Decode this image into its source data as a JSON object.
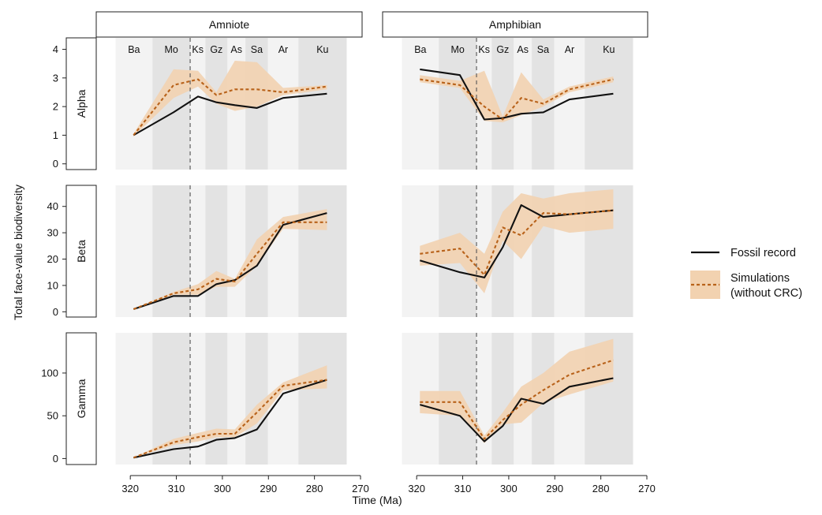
{
  "xlabel": "Time (Ma)",
  "ylabel": "Total face-value biodiversity",
  "columns": [
    "Amniote",
    "Amphibian"
  ],
  "rows": [
    "Alpha",
    "Beta",
    "Gamma"
  ],
  "colors": {
    "fossil": "#111111",
    "sim_line": "#b8621a",
    "sim_band": "#f2d2b0",
    "band_light": "#f3f3f3",
    "band_dark": "#e3e3e3"
  },
  "legend": {
    "fossil": "Fossil record",
    "sim_line1": "Simulations",
    "sim_line2": "(without CRC)"
  },
  "chart_data": {
    "type": "line",
    "xlim": [
      325,
      270
    ],
    "x_ticks": [
      320,
      310,
      300,
      290,
      280,
      270
    ],
    "vline": 307,
    "stages": [
      {
        "label": "Ba",
        "start": 323.2,
        "end": 315.2,
        "shade": "light"
      },
      {
        "label": "Mo",
        "start": 315.2,
        "end": 307.0,
        "shade": "dark"
      },
      {
        "label": "Ks",
        "start": 307.0,
        "end": 303.7,
        "shade": "light"
      },
      {
        "label": "Gz",
        "start": 303.7,
        "end": 298.9,
        "shade": "dark"
      },
      {
        "label": "As",
        "start": 298.9,
        "end": 295.0,
        "shade": "light"
      },
      {
        "label": "Sa",
        "start": 295.0,
        "end": 290.1,
        "shade": "dark"
      },
      {
        "label": "Ar",
        "start": 290.1,
        "end": 283.5,
        "shade": "light"
      },
      {
        "label": "Ku",
        "start": 283.5,
        "end": 273.0,
        "shade": "dark"
      }
    ],
    "panels": [
      {
        "row": "Alpha",
        "col": "Amniote",
        "ylim": [
          -0.2,
          4.4
        ],
        "yticks": [
          0,
          1,
          2,
          3,
          4
        ],
        "x": [
          319.3,
          310.6,
          305.3,
          301.3,
          297.3,
          292.5,
          286.8,
          277.3
        ],
        "fossil": [
          1.0,
          1.8,
          2.35,
          2.15,
          2.05,
          1.95,
          2.3,
          2.45
        ],
        "sim": [
          1.0,
          2.75,
          2.95,
          2.4,
          2.6,
          2.6,
          2.5,
          2.7
        ],
        "sim_low": [
          0.95,
          2.3,
          2.7,
          2.1,
          1.85,
          2.0,
          2.4,
          2.6
        ],
        "sim_high": [
          1.05,
          3.3,
          3.25,
          2.5,
          3.6,
          3.55,
          2.65,
          2.75
        ]
      },
      {
        "row": "Alpha",
        "col": "Amphibian",
        "ylim": [
          -0.2,
          4.4
        ],
        "yticks": [
          0,
          1,
          2,
          3,
          4
        ],
        "x": [
          319.3,
          310.6,
          305.3,
          301.3,
          297.3,
          292.5,
          286.8,
          277.3
        ],
        "fossil": [
          3.3,
          3.1,
          1.55,
          1.6,
          1.75,
          1.8,
          2.25,
          2.45
        ],
        "sim": [
          2.95,
          2.75,
          2.0,
          1.55,
          2.3,
          2.1,
          2.6,
          2.95
        ],
        "sim_low": [
          2.85,
          2.65,
          1.5,
          1.45,
          1.7,
          2.0,
          2.5,
          2.85
        ],
        "sim_high": [
          3.1,
          2.9,
          3.25,
          1.65,
          3.2,
          2.25,
          2.7,
          3.05
        ]
      },
      {
        "row": "Beta",
        "col": "Amniote",
        "ylim": [
          -2,
          48
        ],
        "yticks": [
          0,
          10,
          20,
          30,
          40
        ],
        "x": [
          319.3,
          310.6,
          305.3,
          301.3,
          297.3,
          292.5,
          286.8,
          277.3
        ],
        "fossil": [
          1,
          6,
          6,
          10.5,
          12,
          17.5,
          33,
          37.5
        ],
        "sim": [
          1,
          7,
          8.5,
          12.5,
          11.5,
          22,
          34,
          34
        ],
        "sim_low": [
          0.8,
          6.5,
          6.5,
          9.5,
          9.5,
          17.5,
          31.5,
          31
        ],
        "sim_high": [
          1.2,
          7.5,
          10.5,
          15.5,
          12.5,
          27.5,
          36,
          39
        ]
      },
      {
        "row": "Beta",
        "col": "Amphibian",
        "ylim": [
          -2,
          48
        ],
        "yticks": [
          0,
          10,
          20,
          30,
          40
        ],
        "x": [
          319.3,
          310.6,
          305.3,
          301.3,
          297.3,
          292.5,
          286.8,
          277.3
        ],
        "fossil": [
          19.5,
          15,
          13,
          24.5,
          40.5,
          36,
          37,
          38.5
        ],
        "sim": [
          22,
          24,
          14,
          32,
          29,
          37.5,
          37,
          38.5
        ],
        "sim_low": [
          17.5,
          18.5,
          7,
          27,
          20,
          32.5,
          30,
          31.5
        ],
        "sim_high": [
          25,
          30,
          22,
          38,
          45,
          43,
          45,
          46.5
        ]
      },
      {
        "row": "Gamma",
        "col": "Amniote",
        "ylim": [
          -7,
          147
        ],
        "yticks": [
          0,
          50,
          100
        ],
        "x": [
          319.3,
          310.6,
          305.3,
          301.3,
          297.3,
          292.5,
          286.8,
          277.3
        ],
        "fossil": [
          1,
          11,
          14,
          22,
          24,
          34,
          76,
          92
        ],
        "sim": [
          1,
          19,
          25,
          29,
          29,
          54,
          85,
          92
        ],
        "sim_low": [
          0.8,
          16,
          20,
          25,
          25,
          41,
          80,
          82
        ],
        "sim_high": [
          1.2,
          23,
          30,
          35,
          34,
          63,
          89,
          109
        ]
      },
      {
        "row": "Gamma",
        "col": "Amphibian",
        "ylim": [
          -7,
          147
        ],
        "yticks": [
          0,
          50,
          100
        ],
        "x": [
          319.3,
          310.6,
          305.3,
          301.3,
          297.3,
          292.5,
          286.8,
          277.3
        ],
        "fossil": [
          63,
          50,
          20,
          38,
          70,
          64,
          84,
          94
        ],
        "sim": [
          66,
          66,
          23,
          45,
          63,
          80,
          98,
          115
        ],
        "sim_low": [
          53,
          50,
          18,
          40,
          42,
          65,
          75,
          90
        ],
        "sim_high": [
          79,
          79,
          27,
          54,
          84,
          100,
          125,
          140
        ]
      }
    ]
  }
}
